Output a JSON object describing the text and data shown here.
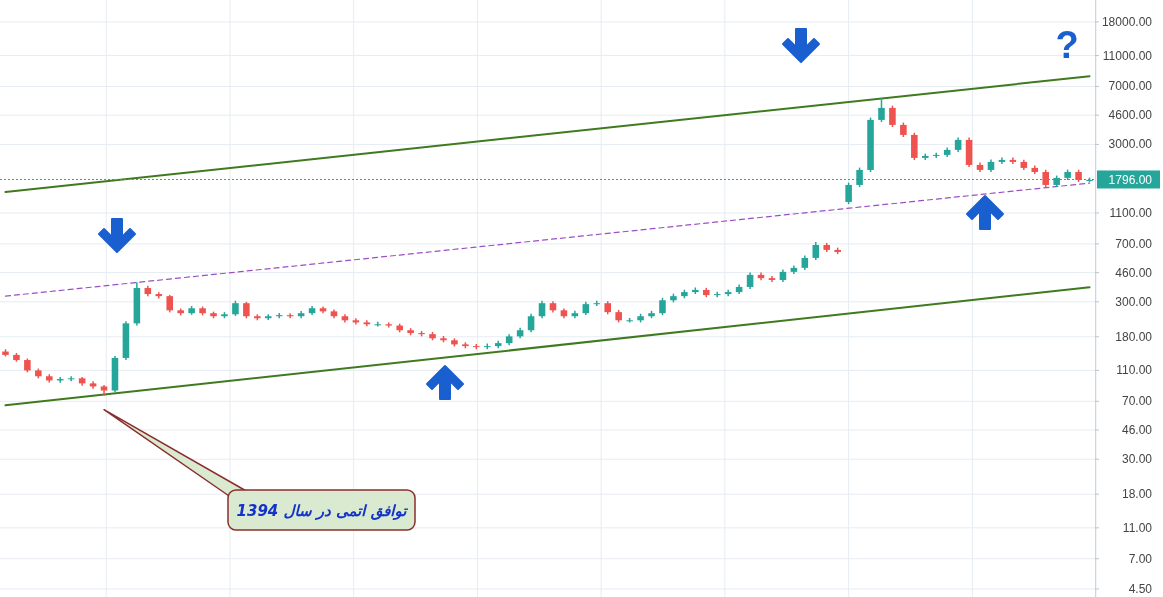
{
  "chart_data": {
    "type": "candlestick",
    "log": true,
    "grid": true,
    "tick_labels": "y",
    "ylim": [
      4,
      24800
    ],
    "yticks": [
      {
        "value": 4.5,
        "label": "4.50"
      },
      {
        "value": 7,
        "label": "7.00"
      },
      {
        "value": 11,
        "label": "11.00"
      },
      {
        "value": 18,
        "label": "18.00"
      },
      {
        "value": 30,
        "label": "30.00"
      },
      {
        "value": 46,
        "label": "46.00"
      },
      {
        "value": 70,
        "label": "70.00"
      },
      {
        "value": 110,
        "label": "110.00"
      },
      {
        "value": 180,
        "label": "180.00"
      },
      {
        "value": 300,
        "label": "300.00"
      },
      {
        "value": 460,
        "label": "460.00"
      },
      {
        "value": 700,
        "label": "700.00"
      },
      {
        "value": 1100,
        "label": "1100.00"
      },
      {
        "value": 3000,
        "label": "3000.00"
      },
      {
        "value": 4600,
        "label": "4600.00"
      },
      {
        "value": 7000,
        "label": "7000.00"
      },
      {
        "value": 11000,
        "label": "11000.00"
      },
      {
        "value": 18000,
        "label": "18000.00"
      }
    ],
    "categories": [
      null,
      null,
      null,
      null,
      null,
      null,
      null,
      null,
      null,
      null,
      null,
      null,
      null,
      null,
      null,
      null,
      null,
      null,
      null,
      null,
      null,
      null,
      null,
      null,
      null,
      null,
      null,
      null,
      null,
      null,
      null,
      null,
      null,
      null,
      null,
      null,
      null,
      null,
      null,
      null,
      null,
      null,
      null,
      null,
      null,
      null,
      null,
      null,
      null,
      null,
      null,
      null,
      null,
      null,
      null,
      null,
      null,
      null,
      null,
      null,
      null,
      null,
      null,
      null,
      null,
      null,
      null,
      null,
      null,
      null,
      null,
      null,
      null,
      null,
      null,
      null,
      null,
      null,
      null,
      null,
      null,
      null,
      null,
      null,
      null,
      null,
      null,
      null,
      null,
      null,
      null,
      null,
      null,
      null,
      null,
      null,
      null,
      null,
      null,
      null
    ],
    "ohlc": [
      [
        145,
        150,
        135,
        138
      ],
      [
        138,
        142,
        125,
        128
      ],
      [
        128,
        131,
        107,
        110
      ],
      [
        110,
        113,
        98,
        101
      ],
      [
        101,
        104,
        92,
        95
      ],
      [
        95,
        100,
        92,
        97
      ],
      [
        97,
        101,
        94,
        98
      ],
      [
        98,
        100,
        88,
        91
      ],
      [
        91,
        94,
        84,
        87
      ],
      [
        87,
        89,
        76,
        82
      ],
      [
        82,
        136,
        80,
        132
      ],
      [
        132,
        226,
        128,
        219
      ],
      [
        219,
        400,
        212,
        367
      ],
      [
        367,
        380,
        325,
        336
      ],
      [
        336,
        345,
        315,
        326
      ],
      [
        326,
        332,
        257,
        265
      ],
      [
        265,
        272,
        246,
        254
      ],
      [
        254,
        282,
        248,
        273
      ],
      [
        273,
        280,
        246,
        254
      ],
      [
        254,
        260,
        236,
        243
      ],
      [
        243,
        258,
        236,
        250
      ],
      [
        250,
        305,
        244,
        294
      ],
      [
        294,
        300,
        236,
        243
      ],
      [
        243,
        250,
        229,
        236
      ],
      [
        236,
        250,
        230,
        243
      ],
      [
        243,
        255,
        236,
        247
      ],
      [
        247,
        254,
        236,
        243
      ],
      [
        243,
        262,
        236,
        254
      ],
      [
        254,
        282,
        247,
        273
      ],
      [
        273,
        280,
        254,
        261
      ],
      [
        261,
        268,
        236,
        243
      ],
      [
        243,
        250,
        222,
        229
      ],
      [
        229,
        236,
        215,
        222
      ],
      [
        222,
        229,
        210,
        216
      ],
      [
        216,
        224,
        209,
        216
      ],
      [
        216,
        222,
        206,
        212
      ],
      [
        212,
        218,
        192,
        198
      ],
      [
        198,
        204,
        184,
        190
      ],
      [
        190,
        196,
        181,
        187
      ],
      [
        187,
        193,
        171,
        176
      ],
      [
        176,
        182,
        166,
        171
      ],
      [
        171,
        176,
        156,
        161
      ],
      [
        161,
        166,
        152,
        157
      ],
      [
        157,
        162,
        150,
        155
      ],
      [
        155,
        163,
        150,
        157
      ],
      [
        157,
        170,
        152,
        164
      ],
      [
        164,
        187,
        159,
        181
      ],
      [
        181,
        205,
        176,
        198
      ],
      [
        198,
        252,
        192,
        243
      ],
      [
        243,
        305,
        236,
        294
      ],
      [
        294,
        303,
        257,
        265
      ],
      [
        265,
        272,
        236,
        243
      ],
      [
        243,
        263,
        236,
        254
      ],
      [
        254,
        300,
        247,
        290
      ],
      [
        290,
        305,
        282,
        294
      ],
      [
        294,
        303,
        250,
        258
      ],
      [
        258,
        266,
        222,
        229
      ],
      [
        229,
        237,
        222,
        229
      ],
      [
        229,
        252,
        222,
        243
      ],
      [
        243,
        263,
        236,
        254
      ],
      [
        254,
        318,
        247,
        307
      ],
      [
        307,
        338,
        298,
        326
      ],
      [
        326,
        358,
        316,
        346
      ],
      [
        346,
        370,
        336,
        357
      ],
      [
        357,
        368,
        321,
        331
      ],
      [
        331,
        348,
        321,
        336
      ],
      [
        336,
        358,
        326,
        346
      ],
      [
        346,
        386,
        336,
        373
      ],
      [
        373,
        460,
        362,
        445
      ],
      [
        445,
        460,
        411,
        424
      ],
      [
        424,
        438,
        401,
        413
      ],
      [
        413,
        481,
        401,
        465
      ],
      [
        465,
        510,
        451,
        493
      ],
      [
        493,
        590,
        478,
        570
      ],
      [
        570,
        720,
        553,
        689
      ],
      [
        689,
        710,
        622,
        641
      ],
      [
        641,
        663,
        603,
        622
      ],
      [
        1293,
        1715,
        1254,
        1658
      ],
      [
        1658,
        2137,
        1608,
        2065
      ],
      [
        2065,
        4440,
        2003,
        4293
      ],
      [
        4293,
        5925,
        4164,
        5117
      ],
      [
        5117,
        5290,
        3870,
        3990
      ],
      [
        3990,
        4130,
        3343,
        3446
      ],
      [
        3446,
        3560,
        2388,
        2462
      ],
      [
        2462,
        2620,
        2388,
        2535
      ],
      [
        2535,
        2660,
        2459,
        2572
      ],
      [
        2572,
        2865,
        2495,
        2768
      ],
      [
        2768,
        3315,
        2685,
        3203
      ],
      [
        3203,
        3315,
        2155,
        2222
      ],
      [
        2222,
        2300,
        2003,
        2065
      ],
      [
        2065,
        2403,
        2003,
        2322
      ],
      [
        2322,
        2475,
        2252,
        2391
      ],
      [
        2391,
        2475,
        2252,
        2322
      ],
      [
        2322,
        2400,
        2063,
        2127
      ],
      [
        2127,
        2200,
        1944,
        2004
      ],
      [
        2004,
        2070,
        1608,
        1658
      ],
      [
        1658,
        1902,
        1608,
        1838
      ],
      [
        1838,
        2074,
        1783,
        2004
      ],
      [
        2004,
        2074,
        1730,
        1784
      ],
      [
        1784,
        1846,
        1730,
        1784
      ]
    ],
    "series": [
      {
        "type": "line",
        "color": "#3f7a1f",
        "line_style": "solid",
        "values": [
          1497,
          null,
          null,
          null,
          null,
          null,
          null,
          null,
          null,
          null,
          null,
          null,
          null,
          null,
          null,
          null,
          null,
          null,
          null,
          null,
          null,
          null,
          null,
          null,
          null,
          null,
          null,
          null,
          null,
          null,
          null,
          null,
          null,
          null,
          null,
          null,
          null,
          null,
          null,
          null,
          null,
          null,
          null,
          null,
          null,
          null,
          null,
          null,
          null,
          null,
          null,
          null,
          null,
          null,
          null,
          null,
          null,
          null,
          null,
          null,
          null,
          null,
          null,
          null,
          null,
          null,
          null,
          null,
          null,
          null,
          null,
          null,
          null,
          null,
          null,
          null,
          null,
          null,
          null,
          null,
          null,
          null,
          null,
          null,
          null,
          null,
          null,
          null,
          null,
          null,
          null,
          null,
          null,
          null,
          null,
          null,
          null,
          null,
          null,
          8130
        ]
      },
      {
        "type": "line",
        "color": "#3f7a1f",
        "line_style": "solid",
        "values": [
          66,
          null,
          null,
          null,
          null,
          null,
          null,
          null,
          null,
          null,
          null,
          null,
          null,
          null,
          null,
          null,
          null,
          null,
          null,
          null,
          null,
          null,
          null,
          null,
          null,
          null,
          null,
          null,
          null,
          null,
          null,
          null,
          null,
          null,
          null,
          null,
          null,
          null,
          null,
          null,
          null,
          null,
          null,
          null,
          null,
          null,
          null,
          null,
          null,
          null,
          null,
          null,
          null,
          null,
          null,
          null,
          null,
          null,
          null,
          null,
          null,
          null,
          null,
          null,
          null,
          null,
          null,
          null,
          null,
          null,
          null,
          null,
          null,
          null,
          null,
          null,
          null,
          null,
          null,
          null,
          null,
          null,
          null,
          null,
          null,
          null,
          null,
          null,
          null,
          null,
          null,
          null,
          null,
          null,
          null,
          null,
          null,
          null,
          null,
          371
        ]
      },
      {
        "type": "line",
        "color": "#9c4fc4",
        "line_style": "dashed",
        "values": [
          326,
          null,
          null,
          null,
          null,
          null,
          null,
          null,
          null,
          null,
          null,
          null,
          null,
          null,
          null,
          null,
          null,
          null,
          null,
          null,
          null,
          null,
          null,
          null,
          null,
          null,
          null,
          null,
          null,
          null,
          null,
          null,
          null,
          null,
          null,
          null,
          null,
          null,
          null,
          null,
          null,
          null,
          null,
          null,
          null,
          null,
          null,
          null,
          null,
          null,
          null,
          null,
          null,
          null,
          null,
          null,
          null,
          null,
          null,
          null,
          null,
          null,
          null,
          null,
          null,
          null,
          null,
          null,
          null,
          null,
          null,
          null,
          null,
          null,
          null,
          null,
          null,
          null,
          null,
          null,
          null,
          null,
          null,
          null,
          null,
          null,
          null,
          null,
          null,
          null,
          null,
          null,
          null,
          null,
          null,
          null,
          null,
          null,
          null,
          1703
        ]
      }
    ],
    "ref_lines": [
      {
        "axis": "y",
        "value": 1796,
        "label": "1796.00",
        "color": "#26a69a",
        "line_style": "dotted"
      }
    ],
    "annotations": [
      "?",
      "توافق اتمی در سال 1394"
    ]
  }
}
